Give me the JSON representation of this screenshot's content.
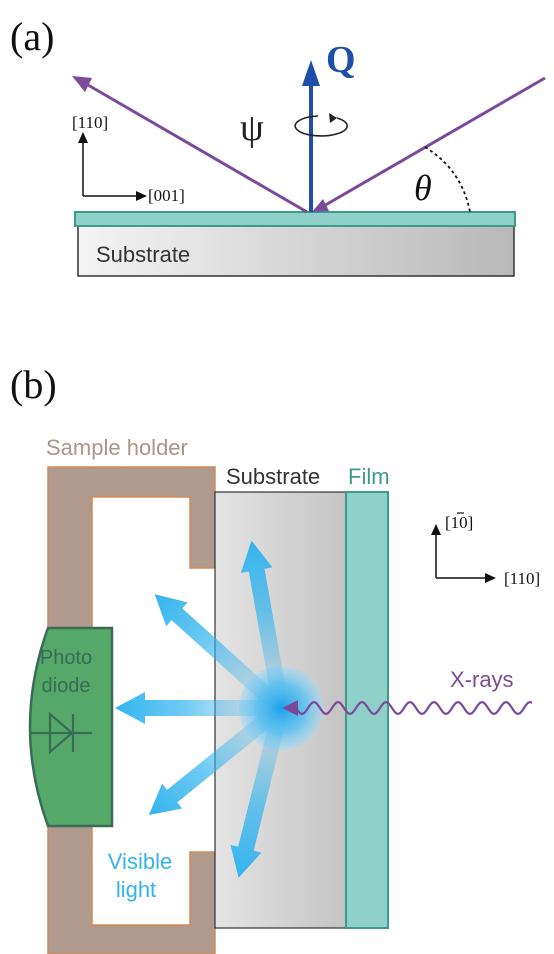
{
  "panel_a": {
    "label": "(a)",
    "vector_label": "Q",
    "rotation_label": "ψ",
    "angle_label": "θ",
    "axis_vertical": "[110]",
    "axis_horizontal": "[001]",
    "substrate_label": "Substrate"
  },
  "panel_b": {
    "label": "(b)",
    "holder_label": "Sample holder",
    "substrate_label": "Substrate",
    "film_label": "Film",
    "axis_vertical": "[1̅0]",
    "axis_vertical_prefix": "[1",
    "axis_vertical_bar": "1",
    "axis_vertical_suffix": "0]",
    "axis_horizontal": "[110]",
    "xray_label": "X-rays",
    "photodiode_line1": "Photo",
    "photodiode_line2": "diode",
    "light_line1": "Visible",
    "light_line2": "light"
  },
  "colors": {
    "beam": "#7b4a9b",
    "vector_q": "#1f4fa8",
    "film": "#8fd0c9",
    "film_stroke": "#3c9b8b",
    "holder": "#b09a8d",
    "holder_stroke": "#d38a56",
    "photodiode": "#55a868",
    "light": "#33b4ee",
    "text_dark": "#333333",
    "text_holder": "#a8968b",
    "text_film": "#3c9b8b"
  }
}
